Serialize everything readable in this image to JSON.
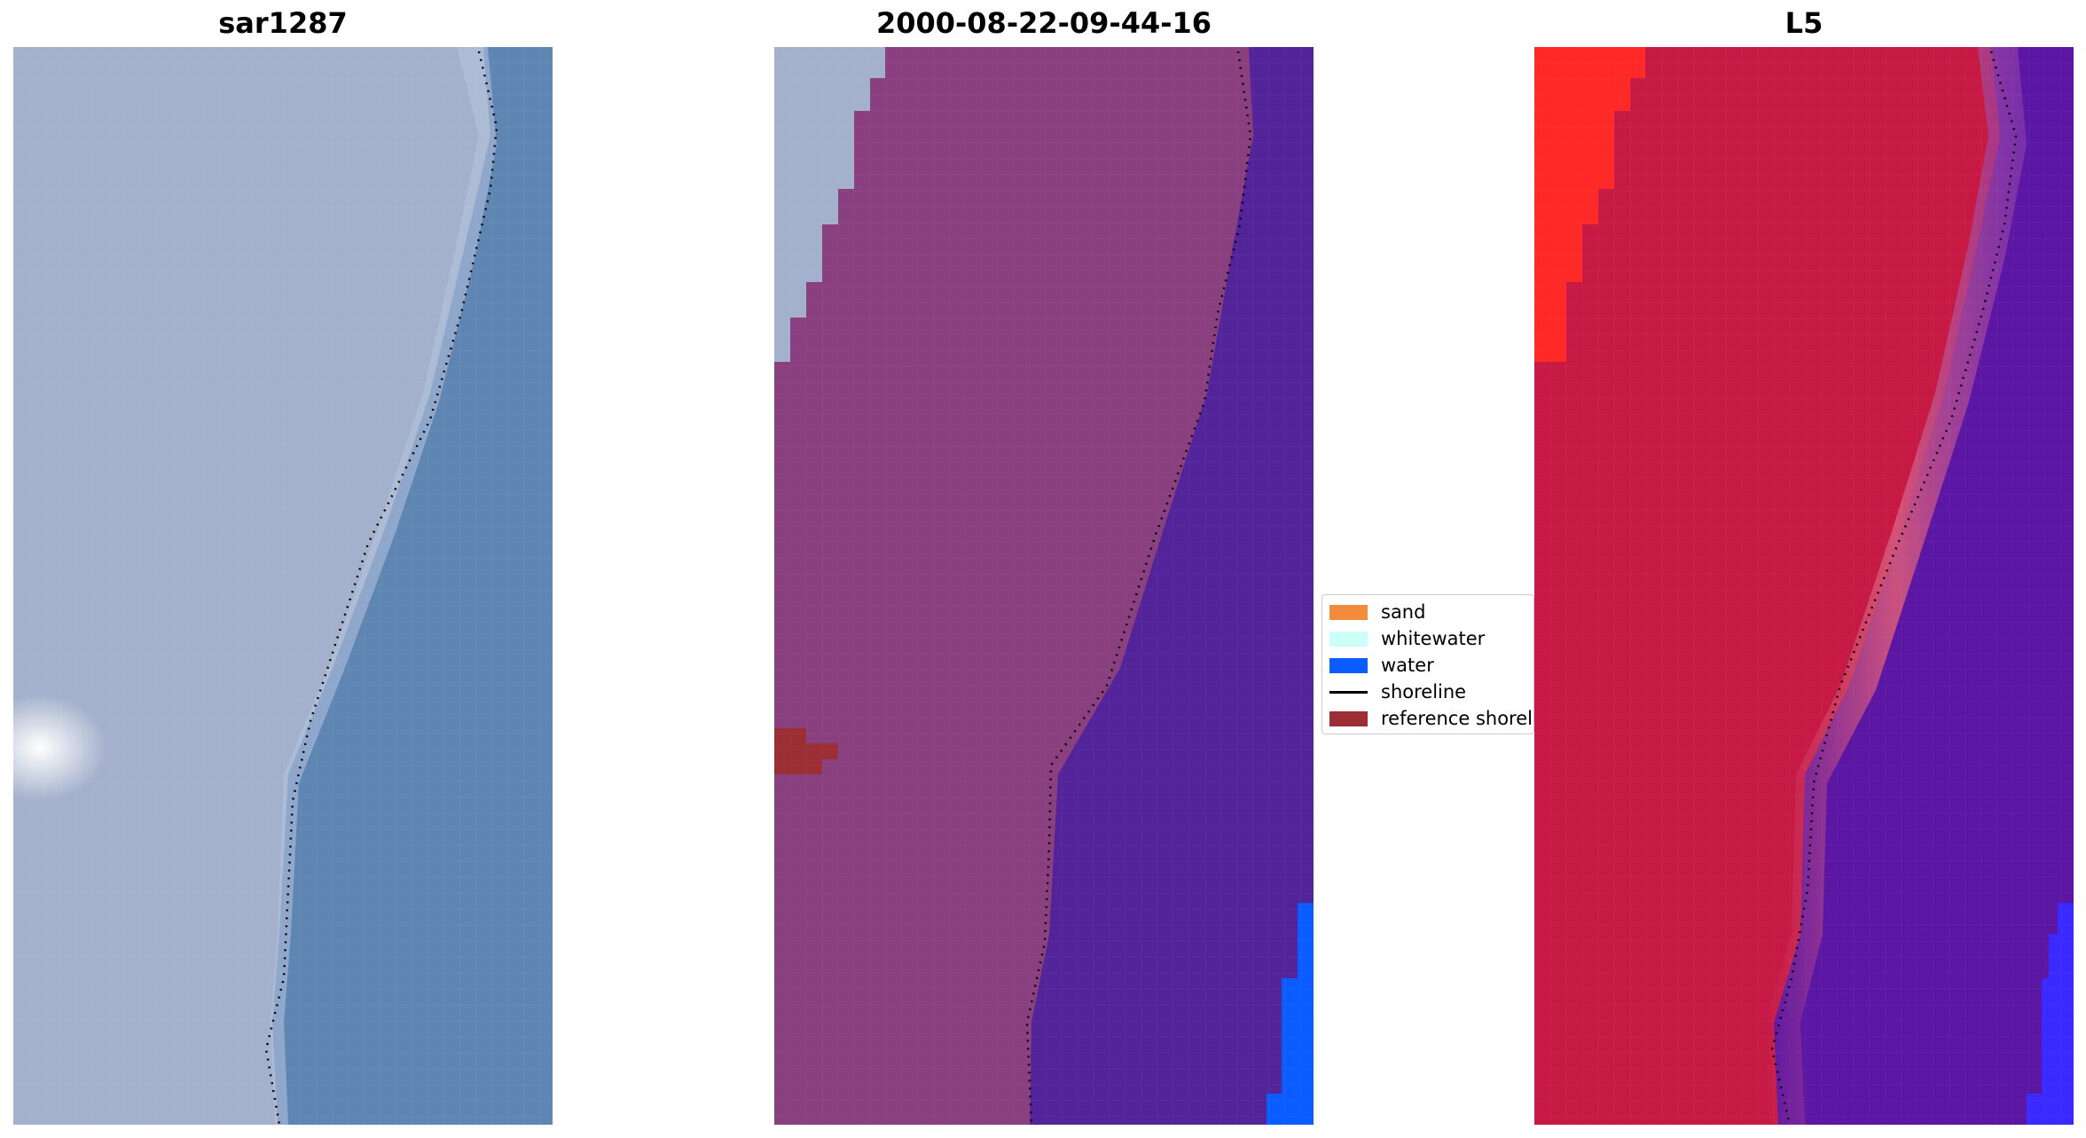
{
  "panels": [
    {
      "title": "sar1287"
    },
    {
      "title": "2000-08-22-09-44-16"
    },
    {
      "title": "L5"
    }
  ],
  "legend": {
    "items": [
      {
        "label": "sand",
        "color": "#f28c3c",
        "kind": "patch"
      },
      {
        "label": "whitewater",
        "color": "#ccfff8",
        "kind": "patch"
      },
      {
        "label": "water",
        "color": "#0b5cff",
        "kind": "patch"
      },
      {
        "label": "shoreline",
        "color": "#000000",
        "kind": "line"
      },
      {
        "label": "reference shoreline",
        "color": "#9b2f35",
        "kind": "patch"
      }
    ]
  },
  "colors": {
    "panel1_land": "#a4b1cc",
    "panel1_sea": "#5f85b3",
    "panel2_land": "#8a3f7f",
    "panel2_sea": "#53239a",
    "panel2_whitewater": "#a4b1cc",
    "panel2_water": "#0b5cff",
    "panel2_reference": "#9b2f35",
    "panel3_land": "#c61a45",
    "panel3_sea": "#5c16a4",
    "panel3_bright": "#ff2a28",
    "panel3_water": "#3a2aff"
  }
}
